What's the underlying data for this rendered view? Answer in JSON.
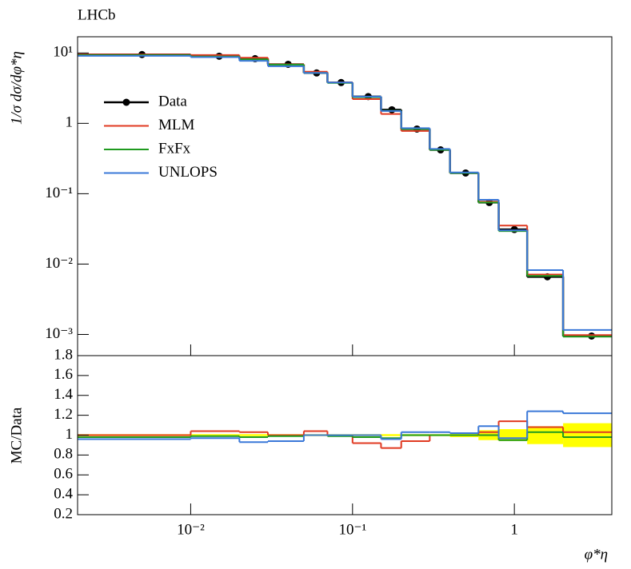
{
  "chart_data": [
    {
      "type": "step",
      "title": "LHCb",
      "ylabel": "1/σ dσ/dφ*η",
      "bins": [
        0.002,
        0.01,
        0.02,
        0.03,
        0.05,
        0.07,
        0.1,
        0.15,
        0.2,
        0.3,
        0.4,
        0.6,
        0.8,
        1.2,
        2.0,
        4.0
      ],
      "x": [
        0.005,
        0.015,
        0.025,
        0.04,
        0.06,
        0.085,
        0.125,
        0.175,
        0.25,
        0.35,
        0.5,
        0.7,
        1.0,
        1.6,
        3.0
      ],
      "log_y": true,
      "ylim": [
        0.0005,
        17
      ],
      "yticks": [
        {
          "value": 10,
          "label": "10¹"
        },
        1,
        {
          "value": 0.1,
          "label": "10⁻¹"
        },
        {
          "value": 0.01,
          "label": "10⁻²"
        },
        {
          "value": 0.001,
          "label": "10⁻³"
        }
      ],
      "legend": "upper left",
      "series": [
        {
          "name": "Data",
          "color": "#000000",
          "points": true,
          "values": [
            9.5,
            9.0,
            8.3,
            6.9,
            5.2,
            3.8,
            2.4,
            1.56,
            0.83,
            0.42,
            0.197,
            0.075,
            0.031,
            0.0066,
            0.00095
          ]
        },
        {
          "name": "MLM",
          "color": "#e03a22",
          "values": [
            9.5,
            9.36,
            8.55,
            6.9,
            5.41,
            3.8,
            2.21,
            1.36,
            0.78,
            0.42,
            0.197,
            0.077,
            0.0353,
            0.0071,
            0.00098
          ]
        },
        {
          "name": "FxFx",
          "color": "#1f9a1f",
          "values": [
            9.31,
            8.91,
            8.13,
            6.83,
            5.2,
            3.76,
            2.35,
            1.51,
            0.83,
            0.42,
            0.197,
            0.075,
            0.0295,
            0.0068,
            0.00093
          ]
        },
        {
          "name": "UNLOPS",
          "color": "#3a78d8",
          "values": [
            9.12,
            8.73,
            7.72,
            6.49,
            5.2,
            3.8,
            2.4,
            1.5,
            0.855,
            0.433,
            0.201,
            0.082,
            0.0301,
            0.0082,
            0.00116
          ]
        }
      ]
    },
    {
      "type": "step",
      "ylabel": "MC/Data",
      "xlabel": "φ*η",
      "log_x": true,
      "xlim": [
        0.002,
        4
      ],
      "xticks": [
        {
          "value": 0.01,
          "label": "10⁻²"
        },
        {
          "value": 0.1,
          "label": "10⁻¹"
        },
        1
      ],
      "ylim": [
        0.2,
        1.8
      ],
      "yticks": [
        0.2,
        0.4,
        0.6,
        0.8,
        1,
        1.2,
        1.4,
        1.6,
        1.8
      ],
      "band": {
        "color": "#ffff00",
        "values": [
          0.01,
          0.01,
          0.01,
          0.01,
          0.01,
          0.01,
          0.01,
          0.01,
          0.01,
          0.01,
          0.02,
          0.05,
          0.06,
          0.09,
          0.12
        ]
      },
      "series": [
        {
          "color": "#e03a22",
          "values": [
            1.0,
            1.04,
            1.03,
            1.0,
            1.04,
            1.0,
            0.92,
            0.87,
            0.94,
            1.0,
            1.0,
            1.03,
            1.14,
            1.08,
            1.03
          ]
        },
        {
          "color": "#1f9a1f",
          "values": [
            0.98,
            0.99,
            0.98,
            0.99,
            1.0,
            0.99,
            0.98,
            0.97,
            1.0,
            1.0,
            1.0,
            1.0,
            0.95,
            1.03,
            0.98
          ]
        },
        {
          "color": "#3a78d8",
          "values": [
            0.96,
            0.97,
            0.93,
            0.94,
            1.0,
            1.0,
            1.0,
            0.96,
            1.03,
            1.03,
            1.02,
            1.09,
            0.97,
            1.24,
            1.22
          ]
        }
      ]
    }
  ]
}
